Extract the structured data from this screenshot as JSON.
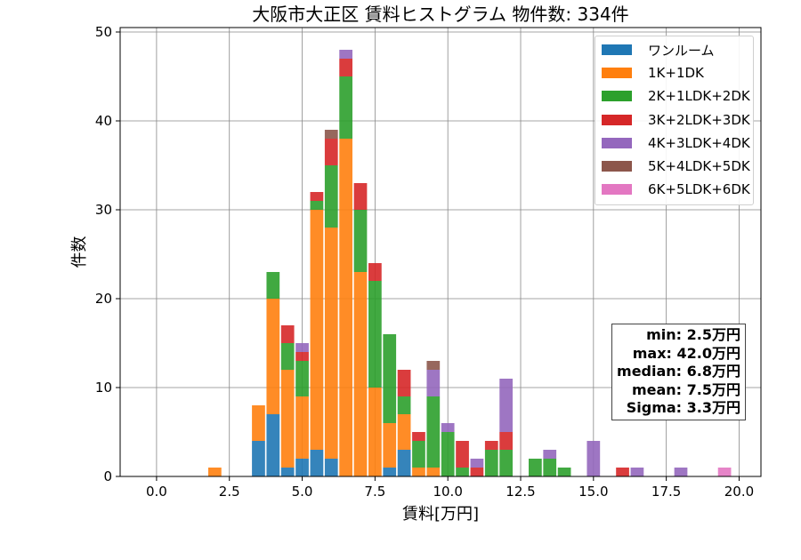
{
  "chart_data": {
    "type": "bar",
    "stacked": true,
    "title": "大阪市大正区 賃料ヒストグラム 物件数: 334件",
    "xlabel": "賃料[万円]",
    "ylabel": "件数",
    "xlim": [
      -1.25,
      20.75
    ],
    "ylim": [
      0,
      50.5
    ],
    "xticks": [
      "0.0",
      "2.5",
      "5.0",
      "7.5",
      "10.0",
      "12.5",
      "15.0",
      "17.5",
      "20.0"
    ],
    "yticks": [
      "0",
      "10",
      "20",
      "30",
      "40",
      "50"
    ],
    "grid": true,
    "legend_position": "top-right",
    "bin_width": 0.5,
    "x": [
      2.0,
      3.5,
      4.0,
      4.5,
      5.0,
      5.5,
      6.0,
      6.5,
      7.0,
      7.5,
      8.0,
      8.5,
      9.0,
      9.5,
      10.0,
      10.5,
      11.0,
      11.5,
      12.0,
      13.0,
      13.5,
      14.0,
      15.0,
      16.0,
      16.5,
      18.0,
      19.5
    ],
    "series": [
      {
        "name": "ワンルーム",
        "color": "#1f77b4",
        "values": [
          0,
          4,
          7,
          1,
          2,
          3,
          2,
          0,
          0,
          0,
          1,
          3,
          0,
          0,
          0,
          0,
          0,
          0,
          0,
          0,
          0,
          0,
          0,
          0,
          0,
          0,
          0
        ]
      },
      {
        "name": "1K+1DK",
        "color": "#ff7f0e",
        "values": [
          1,
          4,
          13,
          11,
          7,
          27,
          26,
          38,
          23,
          10,
          5,
          4,
          1,
          1,
          0,
          0,
          0,
          0,
          0,
          0,
          0,
          0,
          0,
          0,
          0,
          0,
          0
        ]
      },
      {
        "name": "2K+1LDK+2DK",
        "color": "#2ca02c",
        "values": [
          0,
          0,
          3,
          3,
          4,
          1,
          7,
          7,
          7,
          12,
          10,
          2,
          3,
          8,
          5,
          1,
          0,
          3,
          3,
          2,
          2,
          1,
          0,
          0,
          0,
          0,
          0
        ]
      },
      {
        "name": "3K+2LDK+3DK",
        "color": "#d62728",
        "values": [
          0,
          0,
          0,
          2,
          1,
          1,
          3,
          2,
          3,
          2,
          0,
          3,
          1,
          0,
          0,
          3,
          1,
          1,
          2,
          0,
          0,
          0,
          0,
          1,
          0,
          0,
          0
        ]
      },
      {
        "name": "4K+3LDK+4DK",
        "color": "#9467bd",
        "values": [
          0,
          0,
          0,
          0,
          1,
          0,
          0,
          1,
          0,
          0,
          0,
          0,
          0,
          3,
          1,
          0,
          1,
          0,
          6,
          0,
          1,
          0,
          4,
          0,
          1,
          1,
          0
        ]
      },
      {
        "name": "5K+4LDK+5DK",
        "color": "#8c564b",
        "values": [
          0,
          0,
          0,
          0,
          0,
          0,
          1,
          0,
          0,
          0,
          0,
          0,
          0,
          1,
          0,
          0,
          0,
          0,
          0,
          0,
          0,
          0,
          0,
          0,
          0,
          0,
          0
        ]
      },
      {
        "name": "6K+5LDK+6DK",
        "color": "#e377c2",
        "values": [
          0,
          0,
          0,
          0,
          0,
          0,
          0,
          0,
          0,
          0,
          0,
          0,
          0,
          0,
          0,
          0,
          0,
          0,
          0,
          0,
          0,
          0,
          0,
          0,
          0,
          0,
          1
        ]
      }
    ],
    "annotation": [
      "min: 2.5万円",
      "max: 42.0万円",
      "median: 6.8万円",
      "mean: 7.5万円",
      "Sigma: 3.3万円"
    ]
  }
}
